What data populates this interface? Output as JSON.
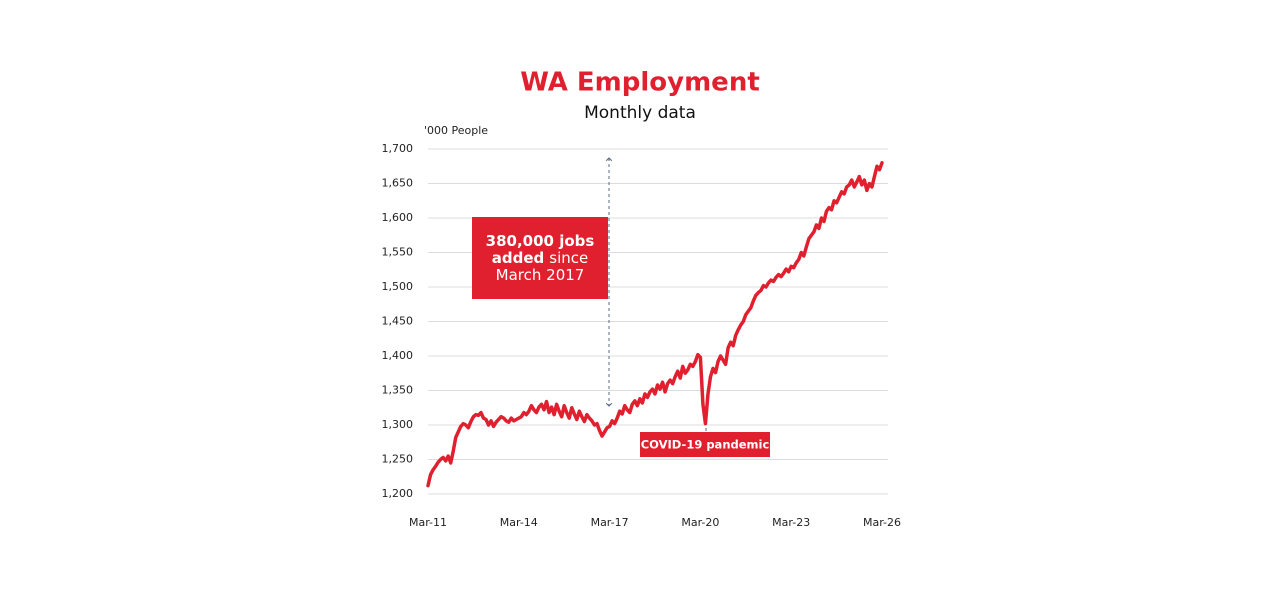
{
  "chart_data": {
    "type": "line",
    "title": "WA Employment",
    "subtitle": "Monthly data",
    "y_axis_label": "'000 People",
    "color": "#e0202e",
    "grid": true,
    "ylim": [
      1200,
      1700
    ],
    "yticks": [
      {
        "value": 1200,
        "label": "1,200"
      },
      {
        "value": 1250,
        "label": "1,250"
      },
      {
        "value": 1300,
        "label": "1,300"
      },
      {
        "value": 1350,
        "label": "1,350"
      },
      {
        "value": 1400,
        "label": "1,400"
      },
      {
        "value": 1450,
        "label": "1,450"
      },
      {
        "value": 1500,
        "label": "1,500"
      },
      {
        "value": 1550,
        "label": "1,550"
      },
      {
        "value": 1600,
        "label": "1,600"
      },
      {
        "value": 1650,
        "label": "1,650"
      },
      {
        "value": 1700,
        "label": "1,700"
      }
    ],
    "categories": [
      "Mar-11",
      null,
      null,
      null,
      null,
      null,
      null,
      null,
      null,
      null,
      null,
      null,
      null,
      null,
      null,
      null,
      null,
      null,
      null,
      null,
      null,
      null,
      null,
      null,
      null,
      null,
      null,
      null,
      null,
      null,
      null,
      null,
      null,
      null,
      null,
      null,
      "Mar-14",
      null,
      null,
      null,
      null,
      null,
      null,
      null,
      null,
      null,
      null,
      null,
      null,
      null,
      null,
      null,
      null,
      null,
      null,
      null,
      null,
      null,
      null,
      null,
      null,
      null,
      null,
      null,
      null,
      null,
      null,
      null,
      null,
      null,
      null,
      null,
      "Mar-17",
      null,
      null,
      null,
      null,
      null,
      null,
      null,
      null,
      null,
      null,
      null,
      null,
      null,
      null,
      null,
      null,
      null,
      null,
      null,
      null,
      null,
      null,
      null,
      null,
      null,
      null,
      null,
      null,
      null,
      null,
      null,
      null,
      null,
      null,
      null,
      "Mar-20",
      null,
      null,
      null,
      null,
      null,
      null,
      null,
      null,
      null,
      null,
      null,
      null,
      null,
      null,
      null,
      null,
      null,
      null,
      null,
      null,
      null,
      null,
      null,
      null,
      null,
      null,
      null,
      null,
      null,
      null,
      null,
      null,
      null,
      null,
      null,
      "Mar-23",
      null,
      null,
      null,
      null,
      null,
      null,
      null,
      null,
      null,
      null,
      null,
      null,
      null,
      null,
      null,
      null,
      null,
      null,
      null,
      null,
      null,
      null,
      null,
      null,
      null,
      null,
      null,
      null,
      null,
      null,
      null,
      null,
      null,
      null,
      null,
      "Mar-26"
    ],
    "values": [
      1212,
      1228,
      1235,
      1240,
      1246,
      1250,
      1253,
      1248,
      1255,
      1245,
      1262,
      1282,
      1290,
      1298,
      1302,
      1300,
      1296,
      1305,
      1312,
      1315,
      1314,
      1318,
      1310,
      1308,
      1300,
      1306,
      1298,
      1304,
      1308,
      1312,
      1310,
      1306,
      1304,
      1310,
      1306,
      1308,
      1310,
      1312,
      1318,
      1315,
      1320,
      1328,
      1322,
      1318,
      1326,
      1330,
      1322,
      1334,
      1318,
      1326,
      1315,
      1330,
      1320,
      1312,
      1328,
      1318,
      1310,
      1325,
      1316,
      1308,
      1320,
      1312,
      1305,
      1315,
      1310,
      1306,
      1300,
      1302,
      1292,
      1284,
      1290,
      1296,
      1298,
      1306,
      1302,
      1310,
      1320,
      1316,
      1328,
      1322,
      1318,
      1330,
      1335,
      1328,
      1338,
      1332,
      1345,
      1340,
      1348,
      1352,
      1345,
      1358,
      1352,
      1362,
      1348,
      1360,
      1365,
      1360,
      1370,
      1378,
      1368,
      1385,
      1375,
      1380,
      1388,
      1385,
      1392,
      1402,
      1398,
      1330,
      1302,
      1345,
      1370,
      1382,
      1376,
      1392,
      1400,
      1394,
      1388,
      1412,
      1420,
      1415,
      1430,
      1438,
      1445,
      1450,
      1460,
      1465,
      1470,
      1480,
      1488,
      1492,
      1495,
      1502,
      1500,
      1506,
      1510,
      1508,
      1514,
      1518,
      1515,
      1520,
      1526,
      1522,
      1530,
      1528,
      1535,
      1540,
      1550,
      1545,
      1558,
      1570,
      1575,
      1580,
      1590,
      1585,
      1600,
      1595,
      1610,
      1615,
      1612,
      1625,
      1622,
      1630,
      1638,
      1635,
      1645,
      1648,
      1655,
      1645,
      1652,
      1660,
      1648,
      1655,
      1640,
      1650,
      1645,
      1660,
      1675,
      1670,
      1680
    ],
    "box_annotation": {
      "lines": [
        [
          {
            "text": "380,000 jobs",
            "bold": true
          }
        ],
        [
          {
            "text": "added",
            "bold": true
          },
          {
            "text": "since",
            "bold": false
          }
        ],
        [
          {
            "text": "March 2017",
            "bold": false
          }
        ]
      ]
    },
    "event_annotation": "COVID-19 pandemic"
  }
}
